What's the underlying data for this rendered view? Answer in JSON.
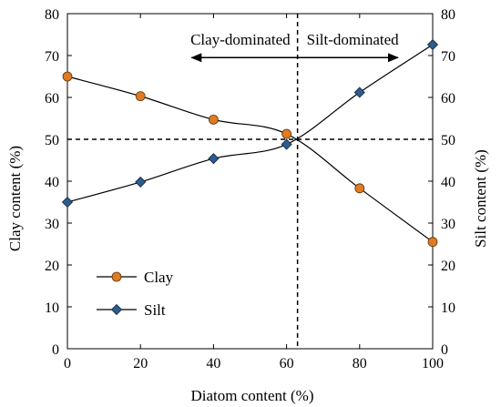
{
  "chart_data": {
    "type": "line",
    "xlabel": "Diatom content (%)",
    "ylabel": "Clay content (%)",
    "y2label": "Silt content (%)",
    "xlim": [
      0,
      100
    ],
    "ylim": [
      0,
      80
    ],
    "xticks": [
      "0",
      "20",
      "40",
      "60",
      "80",
      "100"
    ],
    "yticks": [
      "0",
      "10",
      "20",
      "30",
      "40",
      "50",
      "60",
      "70",
      "80"
    ],
    "x_tick_values": [
      0,
      20,
      40,
      60,
      80,
      100
    ],
    "y_tick_values": [
      0,
      10,
      20,
      30,
      40,
      50,
      60,
      70,
      80
    ],
    "grid": false,
    "legend_position": "bottom-left",
    "series": [
      {
        "name": "Clay",
        "marker": "circle",
        "color": "#E07B21",
        "x": [
          0,
          20,
          40,
          60,
          80,
          100
        ],
        "y": [
          65,
          60.3,
          54.7,
          51.3,
          38.3,
          25.5
        ]
      },
      {
        "name": "Silt",
        "marker": "diamond",
        "color": "#2E5C8A",
        "x": [
          0,
          20,
          40,
          60,
          80,
          100
        ],
        "y": [
          35,
          39.8,
          45.4,
          48.8,
          61.2,
          72.6
        ]
      }
    ],
    "reference_lines": {
      "vertical_x": 63,
      "horizontal_y": 50
    },
    "annotations": [
      {
        "text": "Clay-dominated"
      },
      {
        "text": "Silt-dominated"
      }
    ]
  }
}
